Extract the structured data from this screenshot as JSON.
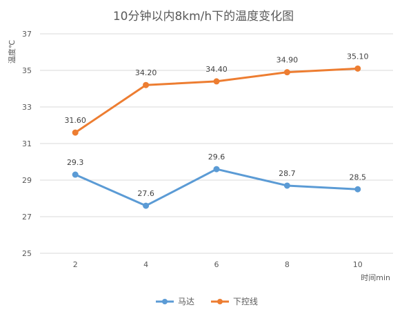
{
  "chart_data": {
    "type": "line",
    "title": "10分钟以内8km/h下的温度变化图",
    "ylabel": "温度℃",
    "xlabel": "时间min",
    "x": [
      2,
      4,
      6,
      8,
      10
    ],
    "ylim": [
      25,
      37
    ],
    "yticks": [
      25,
      27,
      29,
      31,
      33,
      35,
      37
    ],
    "grid": true,
    "legend_position": "bottom",
    "series": [
      {
        "name": "马达",
        "color": "#5b9bd5",
        "values": [
          29.3,
          27.6,
          29.6,
          28.7,
          28.5
        ],
        "labels": [
          "29.3",
          "27.6",
          "29.6",
          "28.7",
          "28.5"
        ]
      },
      {
        "name": "下控线",
        "color": "#ed7d31",
        "values": [
          31.6,
          34.2,
          34.4,
          34.9,
          35.1
        ],
        "labels": [
          "31.60",
          "34.20",
          "34.40",
          "34.90",
          "35.10"
        ]
      }
    ]
  }
}
